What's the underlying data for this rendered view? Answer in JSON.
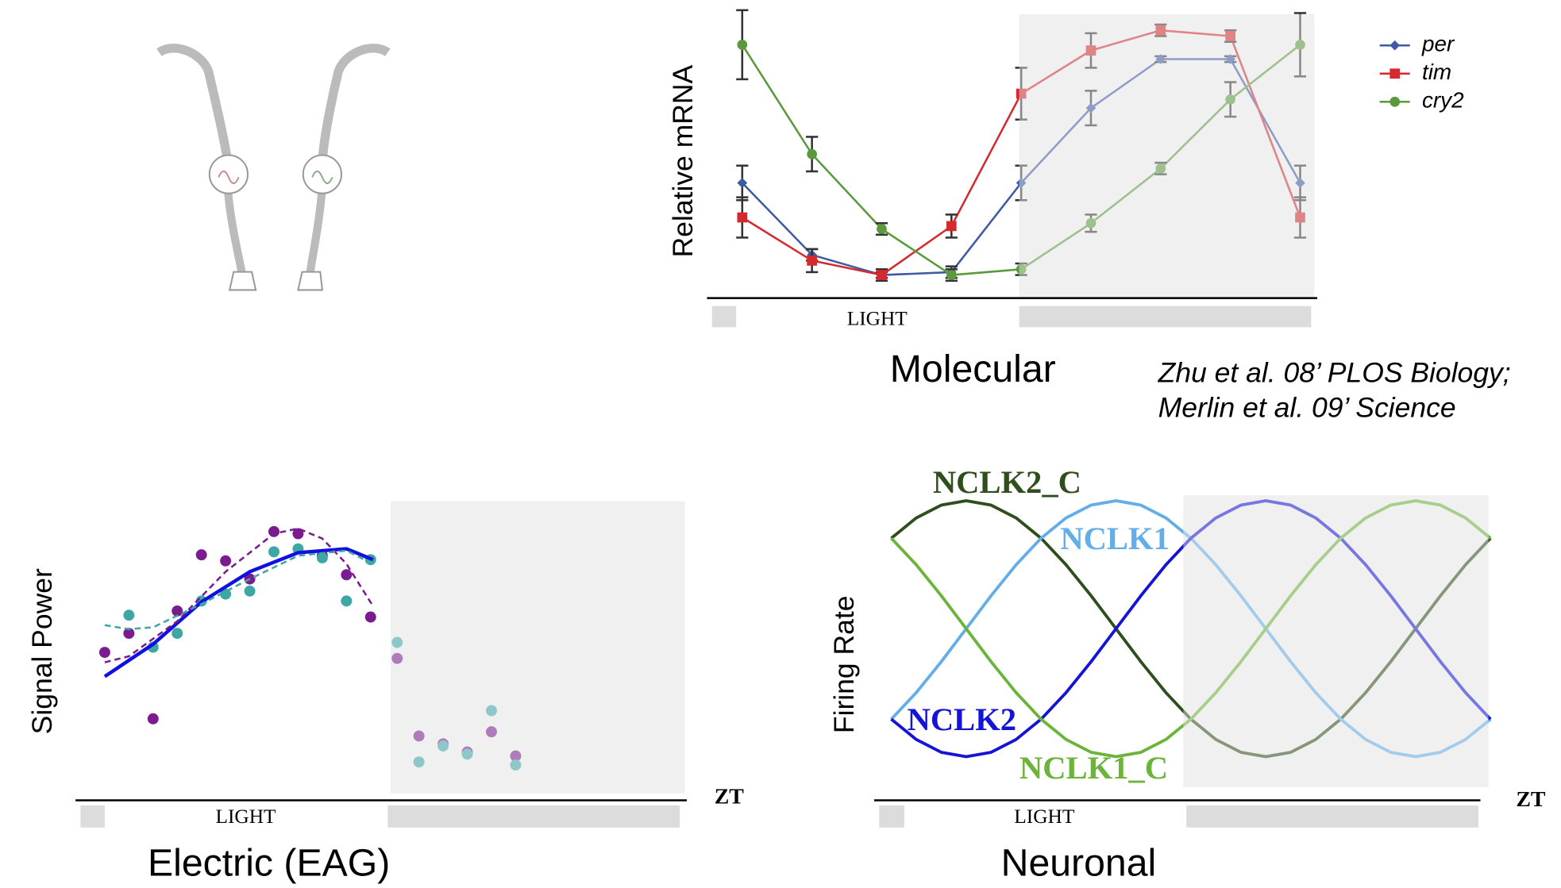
{
  "chart_data": [
    {
      "type": "line",
      "title": "Molecular",
      "ylabel": "Relative mRNA",
      "xlabel": "LIGHT",
      "categories": [
        null,
        null,
        null,
        null,
        null,
        null,
        null,
        null,
        null
      ],
      "ylim": [
        0,
        100
      ],
      "legend": "upper right",
      "series": [
        {
          "name": "per",
          "color": "#3d5aa3",
          "marker": "diamond",
          "values": [
            40,
            15,
            8,
            9,
            40,
            66,
            83,
            83,
            40
          ],
          "errors": [
            6,
            2,
            1,
            2,
            6,
            6,
            1,
            1,
            6
          ]
        },
        {
          "name": "tim",
          "color": "#d42a2f",
          "marker": "square",
          "values": [
            28,
            13,
            8,
            25,
            71,
            86,
            93,
            91,
            28
          ],
          "errors": [
            7,
            4,
            2,
            4,
            9,
            6,
            2,
            2,
            7
          ]
        },
        {
          "name": "cry2",
          "color": "#5b9a3c",
          "marker": "circle",
          "values": [
            88,
            50,
            24,
            8,
            10,
            26,
            45,
            69,
            88
          ],
          "errors": [
            12,
            6,
            2,
            2,
            2,
            3,
            2,
            6,
            11
          ]
        }
      ]
    },
    {
      "type": "scatter",
      "title": "Electric (EAG)",
      "ylabel": "Signal Power",
      "xlabel": "LIGHT",
      "x_axis_label": "ZT",
      "xlim": [
        0,
        25
      ],
      "ylim": [
        0,
        100
      ],
      "series": [
        {
          "color": "#7a1c90",
          "x": [
            1,
            2,
            3,
            4,
            5,
            6,
            7,
            8,
            9,
            10,
            11,
            12,
            13.1,
            14,
            15,
            16,
            17,
            18
          ],
          "values": [
            49,
            55.3,
            27,
            62.7,
            81.3,
            79.3,
            73.3,
            89,
            88.3,
            81,
            74.7,
            60.7,
            47,
            21.3,
            18.7,
            16,
            22.7,
            14.7
          ]
        },
        {
          "color": "#3fa6a6",
          "x": [
            2,
            3,
            4,
            5,
            6,
            7,
            8,
            9,
            10,
            11,
            12,
            13.1,
            14,
            15,
            16,
            17,
            18
          ],
          "values": [
            61.3,
            50.7,
            55.3,
            66,
            68.3,
            69.3,
            82.3,
            83.3,
            80.3,
            66,
            79.7,
            52.3,
            12.7,
            18,
            15.3,
            29.7,
            11.7
          ]
        }
      ],
      "fits": [
        {
          "color": "#1010e0",
          "dashed": false,
          "x": [
            1,
            3,
            5,
            7,
            9,
            11,
            12.1
          ],
          "values": [
            41,
            51.7,
            65.7,
            75.7,
            82,
            83.3,
            79.7
          ]
        },
        {
          "color": "#7a1c90",
          "dashed": true,
          "x": [
            1,
            2,
            4,
            6,
            8,
            9,
            10,
            11,
            12.1
          ],
          "values": [
            45.7,
            47.7,
            59.3,
            75.7,
            88.3,
            90,
            86.7,
            78.3,
            64.3
          ]
        },
        {
          "color": "#3fa6a6",
          "dashed": true,
          "x": [
            1,
            2,
            3,
            5,
            7,
            9,
            11,
            12.1
          ],
          "values": [
            58,
            56.7,
            57.3,
            65,
            73.3,
            81,
            82.7,
            78.3
          ]
        }
      ]
    },
    {
      "type": "line",
      "title": "Neuronal",
      "ylabel": "Firing Rate",
      "xlabel": "LIGHT",
      "x_axis_label": "ZT",
      "xlim": [
        0,
        24
      ],
      "ylim": [
        0,
        100
      ],
      "x": [
        0,
        1,
        2,
        3,
        4,
        5,
        6,
        7,
        8,
        9,
        10,
        11,
        12,
        13,
        14,
        15,
        16,
        17,
        18,
        19,
        20,
        21,
        22,
        23,
        24
      ],
      "series": [
        {
          "name": "NCLK2_C",
          "color": "#2e4e1b",
          "values": [
            84,
            90.5,
            94.6,
            96,
            94.6,
            90.5,
            84,
            75.5,
            65.6,
            55,
            44.4,
            34.5,
            26,
            19.5,
            15.4,
            14,
            15.4,
            19.5,
            26,
            34.5,
            44.4,
            55,
            65.6,
            75.5,
            84
          ]
        },
        {
          "name": "NCLK1",
          "color": "#63aee9",
          "values": [
            26,
            34.5,
            44.4,
            55,
            65.6,
            75.5,
            84,
            90.5,
            94.6,
            96,
            94.6,
            90.5,
            84,
            75.5,
            65.6,
            55,
            44.4,
            34.5,
            26,
            19.5,
            15.4,
            14,
            15.4,
            19.5,
            26
          ]
        },
        {
          "name": "NCLK2",
          "color": "#1414d6",
          "values": [
            26,
            19.5,
            15.4,
            14,
            15.4,
            19.5,
            26,
            34.5,
            44.4,
            55,
            65.6,
            75.5,
            84,
            90.5,
            94.6,
            96,
            94.6,
            90.5,
            84,
            75.5,
            65.6,
            55,
            44.4,
            34.5,
            26
          ]
        },
        {
          "name": "NCLK1_C",
          "color": "#6cb33a",
          "values": [
            84,
            75.5,
            65.6,
            55,
            44.4,
            34.5,
            26,
            19.5,
            15.4,
            14,
            15.4,
            19.5,
            26,
            34.5,
            44.4,
            55,
            65.6,
            75.5,
            84,
            90.5,
            94.6,
            96,
            94.6,
            90.5,
            84
          ]
        }
      ]
    }
  ],
  "citation": [
    "Zhu et al. 08’ PLOS Biology;",
    "Merlin et al. 09’ Science"
  ]
}
